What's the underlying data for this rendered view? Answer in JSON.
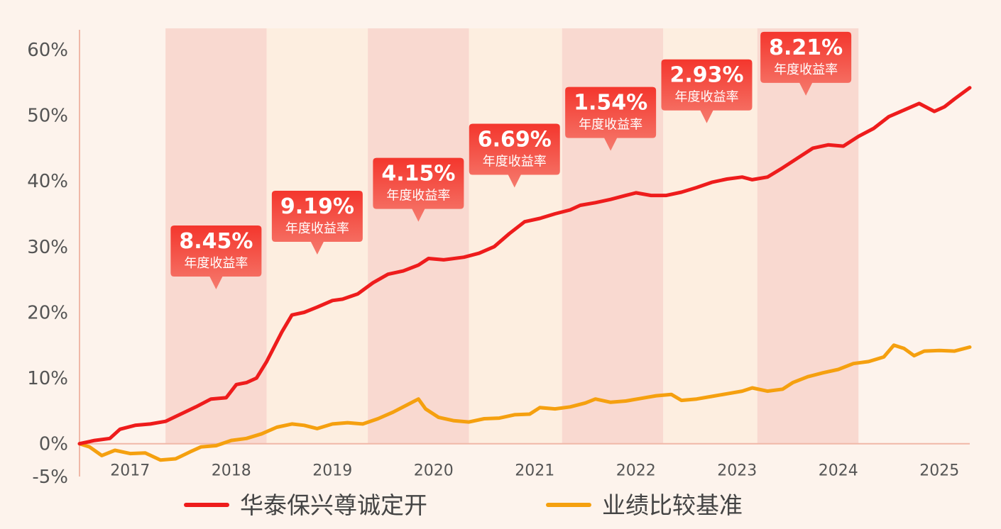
{
  "chart_data": {
    "type": "line",
    "title": "",
    "xlabel": "",
    "ylabel": "",
    "ylim": [
      -5,
      60
    ],
    "yticks": [
      60,
      50,
      40,
      30,
      20,
      10,
      0,
      -5
    ],
    "ytick_labels": [
      "60%",
      "50%",
      "40%",
      "30%",
      "20%",
      "10%",
      "0%",
      "-5%"
    ],
    "xlim": [
      2016.5,
      2025.3
    ],
    "x_labels": [
      {
        "x": 2017.0,
        "label": "2017"
      },
      {
        "x": 2018.0,
        "label": "2018"
      },
      {
        "x": 2019.0,
        "label": "2019"
      },
      {
        "x": 2020.0,
        "label": "2020"
      },
      {
        "x": 2021.0,
        "label": "2021"
      },
      {
        "x": 2022.0,
        "label": "2022"
      },
      {
        "x": 2023.0,
        "label": "2023"
      },
      {
        "x": 2024.0,
        "label": "2024"
      },
      {
        "x": 2025.0,
        "label": "2025"
      }
    ],
    "year_bands": [
      {
        "start": 2017.35,
        "end": 2018.35,
        "color": "#f9d9d0"
      },
      {
        "start": 2018.35,
        "end": 2019.35,
        "color": "#fdeee0"
      },
      {
        "start": 2019.35,
        "end": 2020.35,
        "color": "#f9d9d0"
      },
      {
        "start": 2020.35,
        "end": 2021.27,
        "color": "#fdeee0"
      },
      {
        "start": 2021.27,
        "end": 2022.27,
        "color": "#f9d9d0"
      },
      {
        "start": 2022.27,
        "end": 2023.2,
        "color": "#fdeee0"
      },
      {
        "start": 2023.2,
        "end": 2024.2,
        "color": "#f9d9d0"
      }
    ],
    "series": [
      {
        "name": "华泰保兴尊诚定开",
        "color": "#ee1c1c",
        "points": [
          [
            2016.5,
            0
          ],
          [
            2016.65,
            0.5
          ],
          [
            2016.8,
            0.8
          ],
          [
            2016.9,
            2.2
          ],
          [
            2017.05,
            2.8
          ],
          [
            2017.2,
            3.0
          ],
          [
            2017.35,
            3.4
          ],
          [
            2017.5,
            4.5
          ],
          [
            2017.65,
            5.6
          ],
          [
            2017.8,
            6.8
          ],
          [
            2017.95,
            7.0
          ],
          [
            2018.05,
            9.0
          ],
          [
            2018.15,
            9.3
          ],
          [
            2018.25,
            10.0
          ],
          [
            2018.35,
            12.5
          ],
          [
            2018.5,
            17.0
          ],
          [
            2018.6,
            19.6
          ],
          [
            2018.72,
            20.0
          ],
          [
            2018.85,
            20.8
          ],
          [
            2019.0,
            21.8
          ],
          [
            2019.1,
            22.0
          ],
          [
            2019.25,
            22.8
          ],
          [
            2019.4,
            24.5
          ],
          [
            2019.55,
            25.8
          ],
          [
            2019.7,
            26.3
          ],
          [
            2019.85,
            27.2
          ],
          [
            2019.95,
            28.2
          ],
          [
            2020.1,
            28.0
          ],
          [
            2020.3,
            28.4
          ],
          [
            2020.45,
            29.0
          ],
          [
            2020.6,
            30.0
          ],
          [
            2020.75,
            32.0
          ],
          [
            2020.9,
            33.8
          ],
          [
            2021.05,
            34.3
          ],
          [
            2021.2,
            35.0
          ],
          [
            2021.35,
            35.6
          ],
          [
            2021.45,
            36.3
          ],
          [
            2021.6,
            36.7
          ],
          [
            2021.75,
            37.2
          ],
          [
            2021.9,
            37.8
          ],
          [
            2022.0,
            38.2
          ],
          [
            2022.15,
            37.8
          ],
          [
            2022.3,
            37.8
          ],
          [
            2022.45,
            38.3
          ],
          [
            2022.6,
            39.0
          ],
          [
            2022.75,
            39.8
          ],
          [
            2022.9,
            40.3
          ],
          [
            2023.05,
            40.6
          ],
          [
            2023.15,
            40.2
          ],
          [
            2023.3,
            40.6
          ],
          [
            2023.45,
            42.0
          ],
          [
            2023.6,
            43.5
          ],
          [
            2023.75,
            45.0
          ],
          [
            2023.9,
            45.5
          ],
          [
            2024.05,
            45.3
          ],
          [
            2024.2,
            46.8
          ],
          [
            2024.35,
            48.0
          ],
          [
            2024.5,
            49.8
          ],
          [
            2024.65,
            50.8
          ],
          [
            2024.8,
            51.8
          ],
          [
            2024.95,
            50.6
          ],
          [
            2025.05,
            51.3
          ],
          [
            2025.15,
            52.5
          ],
          [
            2025.3,
            54.2
          ]
        ]
      },
      {
        "name": "业绩比较基准",
        "color": "#f5a00f",
        "points": [
          [
            2016.5,
            0
          ],
          [
            2016.6,
            -0.5
          ],
          [
            2016.72,
            -1.8
          ],
          [
            2016.85,
            -1.0
          ],
          [
            2017.0,
            -1.5
          ],
          [
            2017.15,
            -1.4
          ],
          [
            2017.3,
            -2.5
          ],
          [
            2017.45,
            -2.3
          ],
          [
            2017.6,
            -1.2
          ],
          [
            2017.7,
            -0.5
          ],
          [
            2017.85,
            -0.3
          ],
          [
            2018.0,
            0.5
          ],
          [
            2018.15,
            0.8
          ],
          [
            2018.3,
            1.5
          ],
          [
            2018.45,
            2.5
          ],
          [
            2018.6,
            3.0
          ],
          [
            2018.72,
            2.8
          ],
          [
            2018.85,
            2.3
          ],
          [
            2019.0,
            3.0
          ],
          [
            2019.15,
            3.2
          ],
          [
            2019.3,
            3.0
          ],
          [
            2019.45,
            3.8
          ],
          [
            2019.6,
            4.8
          ],
          [
            2019.75,
            6.0
          ],
          [
            2019.85,
            6.8
          ],
          [
            2019.92,
            5.3
          ],
          [
            2020.05,
            4.0
          ],
          [
            2020.2,
            3.5
          ],
          [
            2020.35,
            3.3
          ],
          [
            2020.5,
            3.8
          ],
          [
            2020.65,
            3.9
          ],
          [
            2020.8,
            4.4
          ],
          [
            2020.95,
            4.5
          ],
          [
            2021.05,
            5.5
          ],
          [
            2021.2,
            5.3
          ],
          [
            2021.35,
            5.6
          ],
          [
            2021.5,
            6.2
          ],
          [
            2021.6,
            6.8
          ],
          [
            2021.75,
            6.3
          ],
          [
            2021.9,
            6.5
          ],
          [
            2022.05,
            6.9
          ],
          [
            2022.2,
            7.3
          ],
          [
            2022.35,
            7.5
          ],
          [
            2022.45,
            6.6
          ],
          [
            2022.6,
            6.8
          ],
          [
            2022.75,
            7.2
          ],
          [
            2022.9,
            7.6
          ],
          [
            2023.05,
            8.0
          ],
          [
            2023.15,
            8.5
          ],
          [
            2023.3,
            8.0
          ],
          [
            2023.45,
            8.3
          ],
          [
            2023.55,
            9.3
          ],
          [
            2023.7,
            10.2
          ],
          [
            2023.85,
            10.8
          ],
          [
            2024.0,
            11.3
          ],
          [
            2024.15,
            12.2
          ],
          [
            2024.3,
            12.5
          ],
          [
            2024.45,
            13.2
          ],
          [
            2024.55,
            15.0
          ],
          [
            2024.65,
            14.5
          ],
          [
            2024.75,
            13.4
          ],
          [
            2024.85,
            14.1
          ],
          [
            2025.0,
            14.2
          ],
          [
            2025.15,
            14.1
          ],
          [
            2025.3,
            14.7
          ]
        ]
      }
    ],
    "annotations": [
      {
        "x": 2017.85,
        "y": 23.5,
        "value": "8.45%",
        "label": "年度收益率"
      },
      {
        "x": 2018.85,
        "y": 28.8,
        "value": "9.19%",
        "label": "年度收益率"
      },
      {
        "x": 2019.85,
        "y": 33.8,
        "value": "4.15%",
        "label": "年度收益率"
      },
      {
        "x": 2020.8,
        "y": 39.0,
        "value": "6.69%",
        "label": "年度收益率"
      },
      {
        "x": 2021.75,
        "y": 44.6,
        "value": "1.54%",
        "label": "年度收益率"
      },
      {
        "x": 2022.7,
        "y": 48.8,
        "value": "2.93%",
        "label": "年度收益率"
      },
      {
        "x": 2023.68,
        "y": 53.0,
        "value": "8.21%",
        "label": "年度收益率"
      }
    ],
    "legend": {
      "placement": "bottom-center",
      "items": [
        {
          "name": "华泰保兴尊诚定开",
          "color": "#ee1c1c"
        },
        {
          "name": "业绩比较基准",
          "color": "#f5a00f"
        }
      ]
    },
    "colors": {
      "background": "#fdf3ec",
      "axis": "#f0b8a8",
      "annotation_top": "#f4362d",
      "annotation_bottom": "#f57a6d"
    }
  }
}
